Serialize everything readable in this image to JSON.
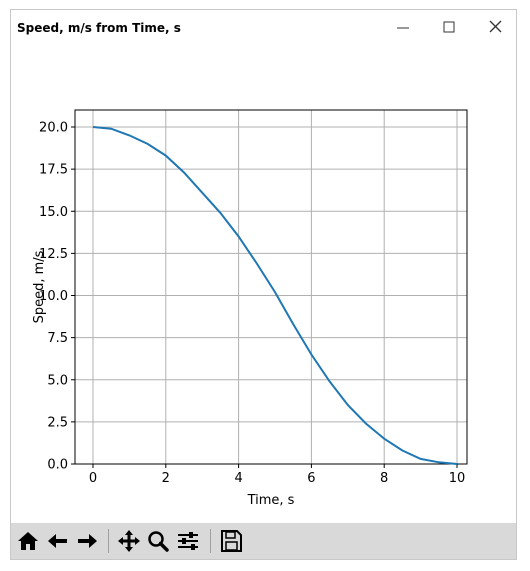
{
  "window": {
    "title": "Speed, m/s from Time, s"
  },
  "icons": {
    "minimize": "minimize-icon",
    "maximize": "maximize-icon",
    "close": "close-icon"
  },
  "toolbar": {
    "buttons": [
      "home-icon",
      "back-arrow-icon",
      "forward-arrow-icon",
      "pan-icon",
      "zoom-icon",
      "configure-subplots-icon",
      "save-icon"
    ]
  },
  "colors": {
    "line": "#1f77b4",
    "grid": "#b0b0b0",
    "toolbar_bg": "#d9d9d9"
  },
  "chart_data": {
    "type": "line",
    "title": "",
    "xlabel": "Time, s",
    "ylabel": "Speed, m/s",
    "xlim": [
      0,
      10
    ],
    "ylim": [
      0,
      20
    ],
    "xticks": [
      "0",
      "2",
      "4",
      "6",
      "8",
      "10"
    ],
    "yticks": [
      "0.0",
      "2.5",
      "5.0",
      "7.5",
      "10.0",
      "12.5",
      "15.0",
      "17.5",
      "20.0"
    ],
    "grid": true,
    "series": [
      {
        "x": [
          0,
          0.5,
          1,
          1.5,
          2,
          2.5,
          3,
          3.5,
          4,
          4.5,
          5,
          5.5,
          6,
          6.5,
          7,
          7.5,
          8,
          8.5,
          9,
          9.5,
          10
        ],
        "y": [
          20.0,
          19.9,
          19.5,
          19.0,
          18.3,
          17.3,
          16.1,
          14.9,
          13.5,
          11.9,
          10.2,
          8.3,
          6.5,
          4.9,
          3.5,
          2.4,
          1.5,
          0.8,
          0.3,
          0.1,
          0.0
        ]
      }
    ]
  }
}
